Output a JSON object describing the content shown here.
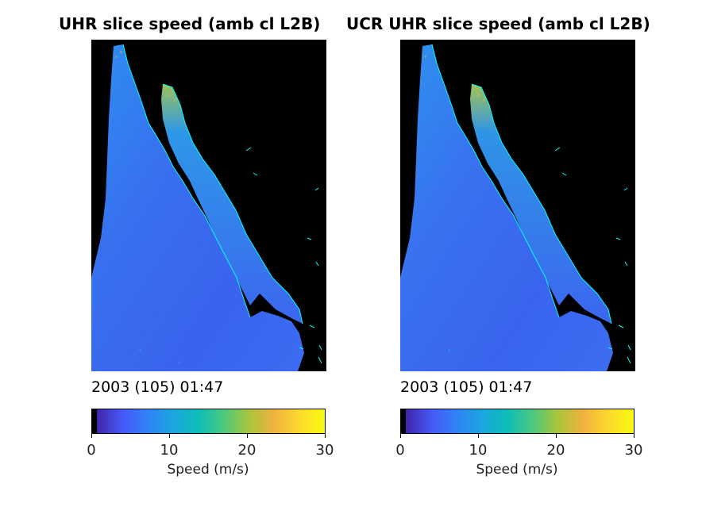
{
  "panels": [
    {
      "title": "UHR slice speed (amb cl L2B)",
      "timestamp": "2003 (105) 01:47",
      "colorbar": {
        "ticks": [
          "0",
          "10",
          "20",
          "30"
        ],
        "label": "Speed (m/s)"
      }
    },
    {
      "title": "UCR UHR slice speed (amb cl L2B)",
      "timestamp": "2003 (105) 01:47",
      "colorbar": {
        "ticks": [
          "0",
          "10",
          "20",
          "30"
        ],
        "label": "Speed (m/s)"
      }
    }
  ],
  "colormap": {
    "name": "parula",
    "range": [
      0,
      30
    ],
    "colors": [
      "#000000",
      "#3e26a8",
      "#4658f6",
      "#2f82f7",
      "#1ca5df",
      "#0dbdb9",
      "#4ac97f",
      "#a9c53b",
      "#f0b13f",
      "#fcd92e",
      "#f9fb0e"
    ],
    "land_color": "#000000",
    "coastline_color": "#00ffff"
  }
}
